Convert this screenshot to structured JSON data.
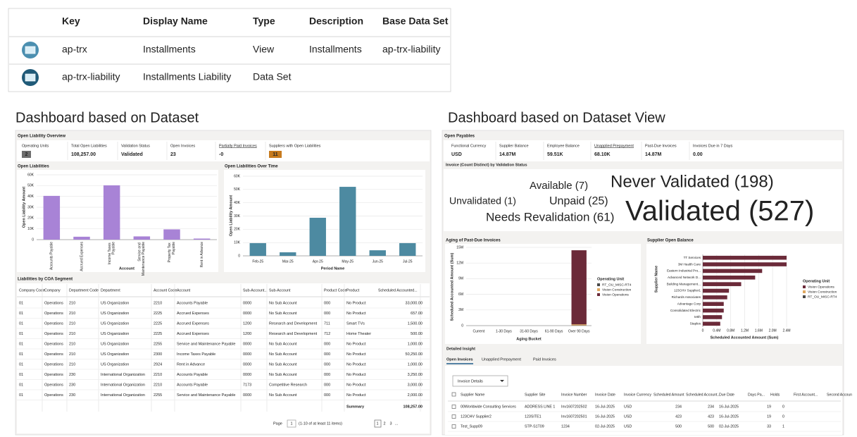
{
  "table": {
    "headers": [
      "Key",
      "Display Name",
      "Type",
      "Description",
      "Base Data Set"
    ],
    "rows": [
      [
        "ap-trx",
        "Installments",
        "View",
        "Installments",
        "ap-trx-liability"
      ],
      [
        "ap-trx-liability",
        "Installments Liability",
        "Data Set"
      ]
    ]
  },
  "captions": [
    "Dashboard based on Dataset",
    "Dashboard based on Dataset View"
  ],
  "left_dashboard": {
    "title": "Open Liability Overview",
    "metrics": [
      {
        "label": "Operating Units",
        "value": "2"
      },
      {
        "label": "Total Open Liabilities",
        "value": "108,257.00"
      },
      {
        "label": "Validation Status",
        "value": "Validated"
      },
      {
        "label": "Open Invoices",
        "value": "23"
      },
      {
        "label": "Partially Paid Invoices",
        "value": "-0"
      },
      {
        "label": "Suppliers with Open Liabilities",
        "value": "11"
      }
    ],
    "coa_table": {
      "title": "Liabilities by COA Segment",
      "headers": [
        "Company Code",
        "Company",
        "Department Code",
        "Department",
        "Account Code",
        "Account",
        "Sub-Account...",
        "Sub-Account",
        "Product Code",
        "Product",
        "Scheduled Accounted..."
      ],
      "rows": [
        [
          "01",
          "Operations",
          "210",
          "US Organization",
          "2210",
          "Accounts Payable",
          "0000",
          "No Sub Account",
          "000",
          "No Product",
          "33,000.00"
        ],
        [
          "01",
          "Operations",
          "210",
          "US Organization",
          "2225",
          "Accrued Expenses",
          "0000",
          "No Sub Account",
          "000",
          "No Product",
          "657.00"
        ],
        [
          "01",
          "Operations",
          "210",
          "US Organization",
          "2225",
          "Accrued Expenses",
          "1200",
          "Research and Development",
          "711",
          "Smart TVs",
          "1,500.00"
        ],
        [
          "01",
          "Operations",
          "210",
          "US Organization",
          "2225",
          "Accrued Expenses",
          "1200",
          "Research and Development",
          "712",
          "Home Theater",
          "500.00"
        ],
        [
          "01",
          "Operations",
          "210",
          "US Organization",
          "2255",
          "Service and Maintenance Payable",
          "0000",
          "No Sub Account",
          "000",
          "No Product",
          "1,000.00"
        ],
        [
          "01",
          "Operations",
          "210",
          "US Organization",
          "2300",
          "Income Taxes Payable",
          "0000",
          "No Sub Account",
          "000",
          "No Product",
          "50,250.00"
        ],
        [
          "01",
          "Operations",
          "210",
          "US Organization",
          "2924",
          "Rent in Advance",
          "0000",
          "No Sub Account",
          "000",
          "No Product",
          "1,000.00"
        ],
        [
          "01",
          "Operations",
          "230",
          "International Organization",
          "2210",
          "Accounts Payable",
          "0000",
          "No Sub Account",
          "000",
          "No Product",
          "3,250.00"
        ],
        [
          "01",
          "Operations",
          "230",
          "International Organization",
          "2210",
          "Accounts Payable",
          "7173",
          "Competitive Research",
          "000",
          "No Product",
          "3,000.00"
        ],
        [
          "01",
          "Operations",
          "230",
          "International Organization",
          "2255",
          "Service and Maintenance Payable",
          "0000",
          "No Sub Account",
          "000",
          "No Product",
          "2,000.00"
        ]
      ],
      "summary_label": "Summary",
      "summary_value": "108,257.00",
      "pager": {
        "label": "Page",
        "current": "1",
        "range": "(1-10 of at least 11 items)",
        "pages": [
          "1",
          "2",
          "3",
          "..."
        ]
      }
    }
  },
  "right_dashboard": {
    "title": "Open Payables",
    "metrics": [
      {
        "label": "Functional Currency",
        "value": "USD"
      },
      {
        "label": "Supplier Balance",
        "value": "14.87M"
      },
      {
        "label": "Employee Balance",
        "value": "59.51K"
      },
      {
        "label": "Unapplied Prepayment",
        "value": "68.10K"
      },
      {
        "label": "Past-Due Invoices",
        "value": "14.87M"
      },
      {
        "label": "Invoices Due in 7 Days",
        "value": "0.00"
      }
    ],
    "word_cloud": {
      "title": "Invoice (Count Distinct) by Validation Status",
      "words": [
        "Never Validated (198)",
        "Available (7)",
        "Unvalidated (1)",
        "Unpaid (25)",
        "Validated (527)",
        "Needs Revalidation (61)"
      ]
    },
    "detail": {
      "title": "Detailed Insight",
      "tabs": [
        "Open Invoices",
        "Unapplied Prepayment",
        "Paid Invoices"
      ],
      "dropdown": "Invoice Details",
      "headers": [
        "Supplier Name",
        "Supplier Site",
        "Invoice Number",
        "Invoice Date",
        "Invoice Currency",
        "Scheduled Amount",
        "Scheduled Account...",
        "Due Date",
        "Days Pa...",
        "Holds",
        "First Account...",
        "Second Accoun"
      ],
      "rows": [
        [
          "00Worldwide Consulting Services",
          "ADDRESS LINE 1",
          "Inv1607202502",
          "16-Jul-2025",
          "USD",
          "234",
          "234",
          "16-Jul-2025",
          "19",
          "0"
        ],
        [
          "123CHV Supplier2",
          "123SITE1",
          "Inv1607202501",
          "16-Jul-2025",
          "USD",
          "423",
          "423",
          "16-Jul-2025",
          "19",
          "0"
        ],
        [
          "Test_Supp09",
          "STP-S1T09",
          "1234",
          "02-Jul-2025",
          "USD",
          "500",
          "500",
          "02-Jul-2025",
          "33",
          "1"
        ]
      ]
    }
  },
  "chart_data": [
    {
      "type": "bar",
      "title": "Open Liabilities",
      "y_label": "Open Liability Amount",
      "x_label": "Account",
      "categories": [
        "Accounts Payable",
        "Accrued Expenses",
        "Income Taxes Payable",
        "Service and Maintenance Payable",
        "Property Tax Payable",
        "Rent in Advance"
      ],
      "values": [
        40500,
        2700,
        50250,
        3000,
        9500,
        1000
      ],
      "color": "#a883d6",
      "ylim": [
        0,
        60000
      ],
      "yticks": [
        0,
        {
          "value": 10000,
          "label": "10K"
        },
        {
          "value": 20000,
          "label": "20K"
        },
        {
          "value": 30000,
          "label": "30K"
        },
        {
          "value": 40000,
          "label": "40K"
        },
        {
          "value": 50000,
          "label": "50K"
        },
        {
          "value": 60000,
          "label": "60K"
        }
      ],
      "grid": true
    },
    {
      "type": "bar",
      "title": "Open Liabilities Over Time",
      "y_label": "Open Liability Amount",
      "x_label": "Period Name",
      "categories": [
        "Feb-25",
        "Mar-25",
        "Apr-25",
        "May-25",
        "Jun-25",
        "Jul-25"
      ],
      "values": [
        9600,
        2700,
        28700,
        52000,
        4200,
        9600
      ],
      "color": "#4d8aa1",
      "ylim": [
        0,
        60000
      ],
      "yticks": [
        0,
        {
          "value": 10000,
          "label": "10K"
        },
        {
          "value": 20000,
          "label": "20K"
        },
        {
          "value": 30000,
          "label": "30K"
        },
        {
          "value": 40000,
          "label": "40K"
        },
        {
          "value": 50000,
          "label": "50K"
        },
        {
          "value": 60000,
          "label": "60K"
        }
      ],
      "grid": true
    },
    {
      "type": "stacked-bar",
      "title": "Aging of Past-Due Invoices",
      "y_label": "Scheduled Accounted Amount (Sum)",
      "x_label": "Aging Bucket",
      "legend_title": "Operating Unit",
      "categories": [
        "Current",
        "1-30 Days",
        "31-60 Days",
        "61-90 Days",
        "Over 90 Days"
      ],
      "series": [
        {
          "name": "RT_OU_MISC-RT4",
          "color": "#4a4a4a",
          "values": [
            null,
            null,
            null,
            null,
            50000
          ]
        },
        {
          "name": "Vision Construction",
          "color": "#e0a860",
          "values": [
            null,
            null,
            null,
            null,
            200000
          ]
        },
        {
          "name": "Vision Operations",
          "color": "#6b2a39",
          "values": [
            null,
            null,
            null,
            null,
            14200000
          ]
        }
      ],
      "ylim": [
        0,
        15000000
      ],
      "yticks": [
        0,
        {
          "value": 3000000,
          "label": "3M"
        },
        {
          "value": 6000000,
          "label": "6M"
        },
        {
          "value": 9000000,
          "label": "9M"
        },
        {
          "value": 12000000,
          "label": "12M"
        },
        {
          "value": 15000000,
          "label": "15M"
        }
      ],
      "grid": true
    },
    {
      "type": "hbar",
      "title": "Supplier Open Balance",
      "y_label": "Supplier Name",
      "x_label": "Scheduled Accounted Amount (Sum)",
      "legend_title": "Operating Unit",
      "categories": [
        "TT Services",
        "3M Health Care",
        "Eastern Industrial Pro...",
        "Advanced Network D...",
        "Building Management...",
        "123CHV Supplier1",
        "Richards Associates",
        "Advantage Corp",
        "Consolidated Electric",
        "tetth",
        "Staples"
      ],
      "series": [
        {
          "name": "Vision Operations",
          "color": "#6b2a39",
          "values": [
            2400000,
            2400000,
            1700000,
            1500000,
            1100000,
            750000,
            700000,
            600000,
            600000,
            550000,
            500000
          ]
        },
        {
          "name": "Vision Construction",
          "color": "#e0a860",
          "values": [
            null,
            null,
            null,
            null,
            null,
            null,
            null,
            null,
            null,
            null,
            null
          ]
        },
        {
          "name": "RT_OU_MISC-RT4",
          "color": "#4a4a4a",
          "values": [
            null,
            null,
            null,
            null,
            null,
            null,
            null,
            null,
            null,
            null,
            null
          ]
        }
      ],
      "xlim": [
        0,
        2400000
      ],
      "xticks": [
        0,
        {
          "value": 400000,
          "label": "0.4M"
        },
        {
          "value": 800000,
          "label": "0.8M"
        },
        {
          "value": 1200000,
          "label": "1.2M"
        },
        {
          "value": 1600000,
          "label": "1.6M"
        },
        {
          "value": 2000000,
          "label": "2.0M"
        },
        {
          "value": 2400000,
          "label": "2.4M"
        }
      ],
      "grid": true
    }
  ]
}
